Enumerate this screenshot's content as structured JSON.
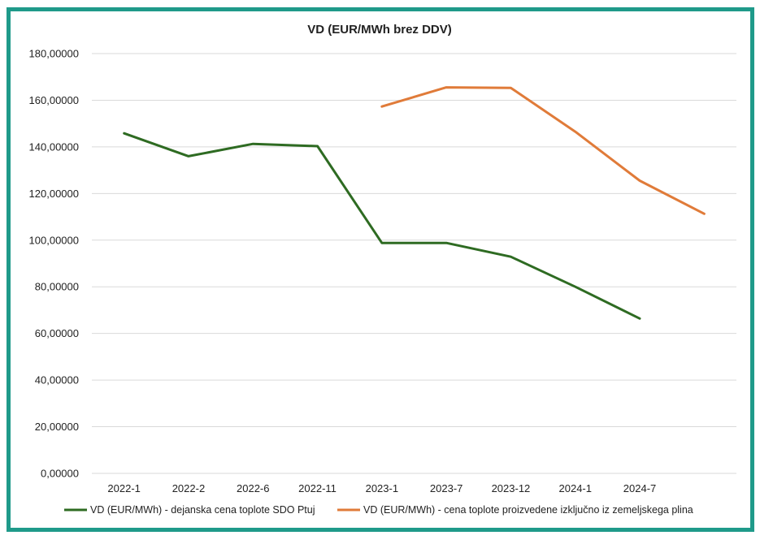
{
  "chart_data": {
    "type": "line",
    "title": "VD (EUR/MWh brez DDV)",
    "categories": [
      "2022-1",
      "2022-2",
      "2022-6",
      "2022-11",
      "2023-1",
      "2023-7",
      "2023-12",
      "2024-1",
      "2024-7",
      ""
    ],
    "y_ticks": [
      "0,00000",
      "20,00000",
      "40,00000",
      "60,00000",
      "80,00000",
      "100,00000",
      "120,00000",
      "140,00000",
      "160,00000",
      "180,00000"
    ],
    "ylim": [
      0,
      180
    ],
    "grid": true,
    "legend_position": "bottom",
    "series": [
      {
        "name": "VD (EUR/MWh) - dejanska cena toplote SDO Ptuj",
        "color": "#2e6b22",
        "values": [
          145.8,
          136.0,
          141.3,
          140.3,
          98.8,
          98.8,
          92.9,
          80.0,
          66.4,
          null
        ]
      },
      {
        "name": "VD (EUR/MWh) - cena toplote proizvedene izključno iz zemeljskega plina",
        "color": "#e07b39",
        "values": [
          null,
          null,
          null,
          null,
          157.3,
          165.5,
          165.3,
          146.5,
          125.5,
          111.3
        ]
      }
    ]
  }
}
